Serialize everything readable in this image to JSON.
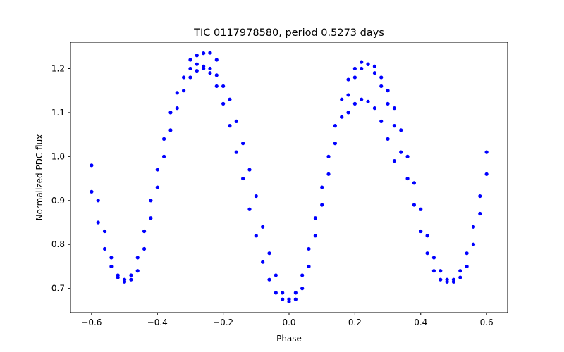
{
  "chart_data": {
    "type": "scatter",
    "title": "TIC 0117978580, period 0.5273 days",
    "xlabel": "Phase",
    "ylabel": "Normalized PDC flux",
    "xlim": [
      -0.664,
      0.664
    ],
    "ylim": [
      0.645,
      1.26
    ],
    "xticks": [
      -0.6,
      -0.4,
      -0.2,
      0.0,
      0.2,
      0.4,
      0.6
    ],
    "xtick_labels": [
      "−0.6",
      "−0.4",
      "−0.2",
      "0.0",
      "0.2",
      "0.4",
      "0.6"
    ],
    "yticks": [
      0.7,
      0.8,
      0.9,
      1.0,
      1.1,
      1.2
    ],
    "ytick_labels": [
      "0.7",
      "0.8",
      "0.9",
      "1.0",
      "1.1",
      "1.2"
    ],
    "grid": false,
    "marker_color": "#0000ff",
    "series": [
      {
        "values": [
          [
            -0.6,
            0.92
          ],
          [
            -0.58,
            0.85
          ],
          [
            -0.56,
            0.79
          ],
          [
            -0.54,
            0.75
          ],
          [
            -0.52,
            0.725
          ],
          [
            -0.5,
            0.72
          ],
          [
            -0.48,
            0.73
          ],
          [
            -0.46,
            0.77
          ],
          [
            -0.44,
            0.83
          ],
          [
            -0.42,
            0.9
          ],
          [
            -0.4,
            0.97
          ],
          [
            -0.38,
            1.04
          ],
          [
            -0.36,
            1.1
          ],
          [
            -0.34,
            1.145
          ],
          [
            -0.32,
            1.18
          ],
          [
            -0.3,
            1.2
          ],
          [
            -0.28,
            1.21
          ],
          [
            -0.26,
            1.205
          ],
          [
            -0.24,
            1.19
          ],
          [
            -0.22,
            1.16
          ],
          [
            -0.2,
            1.12
          ],
          [
            -0.18,
            1.07
          ],
          [
            -0.16,
            1.01
          ],
          [
            -0.14,
            0.95
          ],
          [
            -0.12,
            0.88
          ],
          [
            -0.1,
            0.82
          ],
          [
            -0.08,
            0.76
          ],
          [
            -0.06,
            0.72
          ],
          [
            -0.04,
            0.69
          ],
          [
            -0.02,
            0.675
          ],
          [
            0.0,
            0.67
          ],
          [
            0.02,
            0.69
          ],
          [
            0.04,
            0.73
          ],
          [
            0.06,
            0.79
          ],
          [
            0.08,
            0.86
          ],
          [
            0.1,
            0.93
          ],
          [
            0.12,
            1.0
          ],
          [
            0.14,
            1.07
          ],
          [
            0.16,
            1.13
          ],
          [
            0.18,
            1.175
          ],
          [
            0.2,
            1.2
          ],
          [
            0.22,
            1.215
          ],
          [
            0.24,
            1.21
          ],
          [
            0.26,
            1.19
          ],
          [
            0.28,
            1.16
          ],
          [
            0.3,
            1.12
          ],
          [
            0.32,
            1.07
          ],
          [
            0.34,
            1.01
          ],
          [
            0.36,
            0.95
          ],
          [
            0.38,
            0.89
          ],
          [
            0.4,
            0.83
          ],
          [
            0.42,
            0.78
          ],
          [
            0.44,
            0.74
          ],
          [
            0.46,
            0.72
          ],
          [
            0.48,
            0.715
          ],
          [
            0.5,
            0.72
          ],
          [
            0.52,
            0.74
          ],
          [
            0.54,
            0.78
          ],
          [
            0.56,
            0.84
          ],
          [
            0.58,
            0.91
          ],
          [
            0.6,
            0.96
          ]
        ]
      },
      {
        "values": [
          [
            -0.6,
            0.98
          ],
          [
            -0.58,
            0.9
          ],
          [
            -0.56,
            0.83
          ],
          [
            -0.54,
            0.77
          ],
          [
            -0.52,
            0.73
          ],
          [
            -0.5,
            0.715
          ],
          [
            -0.48,
            0.72
          ],
          [
            -0.46,
            0.74
          ],
          [
            -0.44,
            0.79
          ],
          [
            -0.42,
            0.86
          ],
          [
            -0.4,
            0.93
          ],
          [
            -0.38,
            1.0
          ],
          [
            -0.36,
            1.06
          ],
          [
            -0.34,
            1.11
          ],
          [
            -0.32,
            1.15
          ],
          [
            -0.3,
            1.18
          ],
          [
            -0.28,
            1.195
          ],
          [
            -0.26,
            1.2
          ],
          [
            -0.24,
            1.2
          ],
          [
            -0.22,
            1.185
          ],
          [
            -0.2,
            1.16
          ],
          [
            -0.18,
            1.13
          ],
          [
            -0.16,
            1.08
          ],
          [
            -0.14,
            1.03
          ],
          [
            -0.12,
            0.97
          ],
          [
            -0.1,
            0.91
          ],
          [
            -0.08,
            0.84
          ],
          [
            -0.06,
            0.78
          ],
          [
            -0.04,
            0.73
          ],
          [
            -0.02,
            0.69
          ],
          [
            0.0,
            0.675
          ],
          [
            0.02,
            0.675
          ],
          [
            0.04,
            0.7
          ],
          [
            0.06,
            0.75
          ],
          [
            0.08,
            0.82
          ],
          [
            0.1,
            0.89
          ],
          [
            0.12,
            0.96
          ],
          [
            0.14,
            1.03
          ],
          [
            0.16,
            1.09
          ],
          [
            0.18,
            1.14
          ],
          [
            0.2,
            1.18
          ],
          [
            0.22,
            1.2
          ],
          [
            0.24,
            1.21
          ],
          [
            0.26,
            1.205
          ],
          [
            0.28,
            1.18
          ],
          [
            0.3,
            1.15
          ],
          [
            0.32,
            1.11
          ],
          [
            0.34,
            1.06
          ],
          [
            0.36,
            1.0
          ],
          [
            0.38,
            0.94
          ],
          [
            0.4,
            0.88
          ],
          [
            0.42,
            0.82
          ],
          [
            0.44,
            0.77
          ],
          [
            0.46,
            0.74
          ],
          [
            0.48,
            0.72
          ],
          [
            0.5,
            0.715
          ],
          [
            0.52,
            0.725
          ],
          [
            0.54,
            0.75
          ],
          [
            0.56,
            0.8
          ],
          [
            0.58,
            0.87
          ],
          [
            0.6,
            1.01
          ]
        ]
      },
      {
        "values": [
          [
            -0.3,
            1.22
          ],
          [
            -0.28,
            1.23
          ],
          [
            -0.26,
            1.235
          ],
          [
            -0.24,
            1.236
          ],
          [
            -0.22,
            1.22
          ],
          [
            0.18,
            1.1
          ],
          [
            0.2,
            1.12
          ],
          [
            0.22,
            1.13
          ],
          [
            0.24,
            1.125
          ],
          [
            0.26,
            1.11
          ],
          [
            0.28,
            1.08
          ],
          [
            0.3,
            1.04
          ],
          [
            0.32,
            0.99
          ]
        ]
      }
    ]
  }
}
